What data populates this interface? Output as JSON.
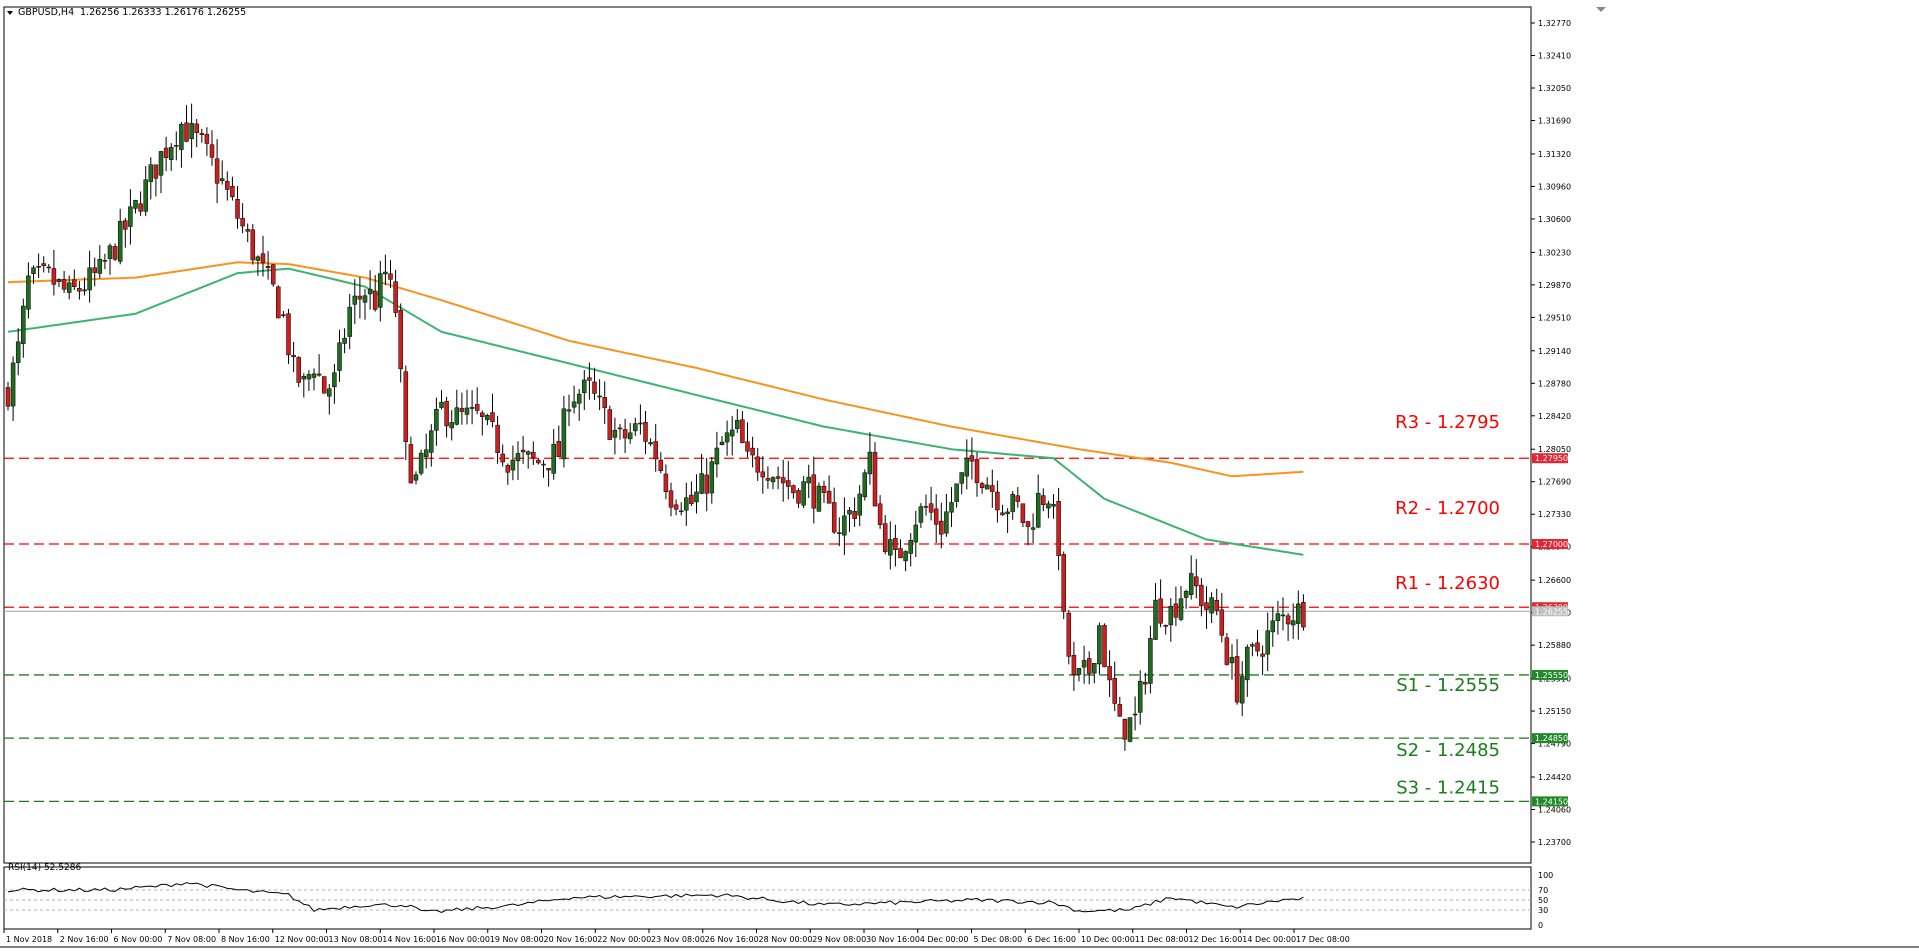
{
  "header": {
    "symbol_label": "GBPUSD,H4",
    "ohlc_text": "1.26256 1.26333 1.26176 1.26255"
  },
  "rsi_panel": {
    "label": "RSI(14) 52.5286",
    "levels": [
      100,
      70,
      50,
      30,
      0
    ],
    "tick_labels": [
      "100",
      "70",
      "50",
      "30",
      "0"
    ]
  },
  "price_axis": {
    "tick_labels": [
      "1.32770",
      "1.32410",
      "1.32050",
      "1.31690",
      "1.31320",
      "1.30960",
      "1.30600",
      "1.30230",
      "1.29870",
      "1.29510",
      "1.29140",
      "1.28780",
      "1.28420",
      "1.28050",
      "1.27690",
      "1.27330",
      "1.26970",
      "1.26600",
      "1.26240",
      "1.25880",
      "1.25510",
      "1.25150",
      "1.24790",
      "1.24420",
      "1.24060",
      "1.23700"
    ],
    "tag_labels": [
      {
        "text": "1.27950",
        "price": 1.2795,
        "color": "#e32636"
      },
      {
        "text": "1.27000",
        "price": 1.27,
        "color": "#e32636"
      },
      {
        "text": "1.26300",
        "price": 1.263,
        "color": "#e32636"
      },
      {
        "text": "1.26255",
        "price": 1.26255,
        "color": "#c0c0c0"
      },
      {
        "text": "1.25550",
        "price": 1.2555,
        "color": "#22882a"
      },
      {
        "text": "1.24850",
        "price": 1.2485,
        "color": "#22882a"
      },
      {
        "text": "1.24150",
        "price": 1.2415,
        "color": "#22882a"
      }
    ]
  },
  "time_axis": {
    "labels": [
      "1 Nov 2018",
      "2 Nov 16:00",
      "6 Nov 00:00",
      "7 Nov 08:00",
      "8 Nov 16:00",
      "12 Nov 00:00",
      "13 Nov 08:00",
      "14 Nov 16:00",
      "16 Nov 00:00",
      "19 Nov 08:00",
      "20 Nov 16:00",
      "22 Nov 00:00",
      "23 Nov 08:00",
      "26 Nov 16:00",
      "28 Nov 00:00",
      "29 Nov 08:00",
      "30 Nov 16:00",
      "4 Dec 00:00",
      "5 Dec 08:00",
      "6 Dec 16:00",
      "10 Dec 00:00",
      "11 Dec 08:00",
      "12 Dec 16:00",
      "14 Dec 00:00",
      "17 Dec 08:00"
    ]
  },
  "levels": [
    {
      "name": "R3",
      "label": "R3 - 1.2795",
      "price": 1.2795,
      "color": "#ff0000"
    },
    {
      "name": "R2",
      "label": "R2 - 1.2700",
      "price": 1.27,
      "color": "#ff0000"
    },
    {
      "name": "R1",
      "label": "R1 - 1.2630",
      "price": 1.263,
      "color": "#ff0000"
    },
    {
      "name": "S1",
      "label": "S1 - 1.2555",
      "price": 1.2555,
      "color": "#1a7f1a"
    },
    {
      "name": "S2",
      "label": "S2 - 1.2485",
      "price": 1.2485,
      "color": "#1a7f1a"
    },
    {
      "name": "S3",
      "label": "S3 - 1.2415",
      "price": 1.2415,
      "color": "#1a7f1a"
    }
  ],
  "colors": {
    "bull_candle": "#1f6b1f",
    "bear_candle": "#cc1f1f",
    "ma_slow": "#f7931e",
    "ma_fast": "#3cb371",
    "rsi_line": "#000000",
    "current_price_line": "#a0a0a0"
  },
  "chart_data": {
    "type": "candlestick",
    "symbol": "GBPUSD",
    "timeframe": "H4",
    "ylim": [
      1.2366,
      1.3292
    ],
    "last_price": 1.26255,
    "close_path_anchors": [
      [
        0,
        1.287
      ],
      [
        2,
        1.2915
      ],
      [
        4,
        1.299
      ],
      [
        8,
        1.2995
      ],
      [
        12,
        1.2975
      ],
      [
        18,
        1.3
      ],
      [
        24,
        1.306
      ],
      [
        30,
        1.313
      ],
      [
        34,
        1.3165
      ],
      [
        38,
        1.314
      ],
      [
        42,
        1.31
      ],
      [
        46,
        1.305
      ],
      [
        50,
        1.3
      ],
      [
        52,
        1.298
      ],
      [
        54,
        1.295
      ],
      [
        56,
        1.289
      ],
      [
        58,
        1.2875
      ],
      [
        60,
        1.29
      ],
      [
        62,
        1.287
      ],
      [
        64,
        1.288
      ],
      [
        67,
        1.296
      ],
      [
        70,
        1.298
      ],
      [
        72,
        1.297
      ],
      [
        74,
        1.3
      ],
      [
        76,
        1.296
      ],
      [
        78,
        1.28
      ],
      [
        80,
        1.277
      ],
      [
        82,
        1.28
      ],
      [
        85,
        1.285
      ],
      [
        88,
        1.284
      ],
      [
        92,
        1.284
      ],
      [
        95,
        1.282
      ],
      [
        98,
        1.2795
      ],
      [
        104,
        1.279
      ],
      [
        108,
        1.28
      ],
      [
        110,
        1.2865
      ],
      [
        114,
        1.287
      ],
      [
        117,
        1.284
      ],
      [
        120,
        1.2815
      ],
      [
        124,
        1.283
      ],
      [
        127,
        1.28
      ],
      [
        130,
        1.2755
      ],
      [
        134,
        1.2745
      ],
      [
        137,
        1.277
      ],
      [
        140,
        1.281
      ],
      [
        143,
        1.2825
      ],
      [
        145,
        1.279
      ],
      [
        148,
        1.279
      ],
      [
        151,
        1.2775
      ],
      [
        154,
        1.276
      ],
      [
        157,
        1.2765
      ],
      [
        160,
        1.274
      ],
      [
        163,
        1.272
      ],
      [
        166,
        1.274
      ],
      [
        169,
        1.279
      ],
      [
        171,
        1.272
      ],
      [
        174,
        1.268
      ],
      [
        176,
        1.2705
      ],
      [
        178,
        1.273
      ],
      [
        180,
        1.274
      ],
      [
        183,
        1.272
      ],
      [
        186,
        1.276
      ],
      [
        189,
        1.279
      ],
      [
        192,
        1.277
      ],
      [
        195,
        1.2745
      ],
      [
        198,
        1.274
      ],
      [
        200,
        1.2715
      ],
      [
        202,
        1.275
      ],
      [
        204,
        1.2755
      ],
      [
        206,
        1.27
      ],
      [
        207,
        1.261
      ],
      [
        209,
        1.2545
      ],
      [
        212,
        1.256
      ],
      [
        214,
        1.261
      ],
      [
        216,
        1.254
      ],
      [
        218,
        1.2495
      ],
      [
        221,
        1.2505
      ],
      [
        223,
        1.256
      ],
      [
        225,
        1.263
      ],
      [
        228,
        1.2625
      ],
      [
        231,
        1.2655
      ],
      [
        233,
        1.265
      ],
      [
        235,
        1.263
      ],
      [
        237,
        1.2625
      ],
      [
        239,
        1.258
      ],
      [
        241,
        1.254
      ],
      [
        243,
        1.257
      ],
      [
        246,
        1.259
      ],
      [
        249,
        1.2615
      ],
      [
        252,
        1.2625
      ],
      [
        254,
        1.26255
      ]
    ],
    "moving_average_slow_anchors": [
      [
        0,
        1.299
      ],
      [
        25,
        1.2995
      ],
      [
        45,
        1.3012
      ],
      [
        55,
        1.301
      ],
      [
        70,
        1.2995
      ],
      [
        85,
        1.297
      ],
      [
        110,
        1.2925
      ],
      [
        135,
        1.2895
      ],
      [
        160,
        1.286
      ],
      [
        185,
        1.283
      ],
      [
        210,
        1.2805
      ],
      [
        228,
        1.279
      ],
      [
        240,
        1.2775
      ],
      [
        254,
        1.278
      ]
    ],
    "moving_average_fast_anchors": [
      [
        0,
        1.2935
      ],
      [
        25,
        1.2955
      ],
      [
        45,
        1.3
      ],
      [
        55,
        1.3005
      ],
      [
        70,
        1.2985
      ],
      [
        85,
        1.2935
      ],
      [
        110,
        1.29
      ],
      [
        135,
        1.2865
      ],
      [
        160,
        1.283
      ],
      [
        185,
        1.2805
      ],
      [
        205,
        1.2795
      ],
      [
        215,
        1.275
      ],
      [
        235,
        1.2705
      ],
      [
        254,
        1.2688
      ]
    ],
    "rsi_anchors": [
      [
        0,
        70
      ],
      [
        20,
        70
      ],
      [
        30,
        78
      ],
      [
        35,
        85
      ],
      [
        45,
        70
      ],
      [
        55,
        60
      ],
      [
        60,
        30
      ],
      [
        70,
        40
      ],
      [
        78,
        40
      ],
      [
        82,
        25
      ],
      [
        100,
        40
      ],
      [
        110,
        55
      ],
      [
        140,
        60
      ],
      [
        160,
        40
      ],
      [
        190,
        50
      ],
      [
        205,
        45
      ],
      [
        210,
        28
      ],
      [
        220,
        30
      ],
      [
        228,
        55
      ],
      [
        240,
        35
      ],
      [
        250,
        50
      ],
      [
        254,
        52.5
      ]
    ],
    "xlabel": "",
    "ylabel": ""
  }
}
